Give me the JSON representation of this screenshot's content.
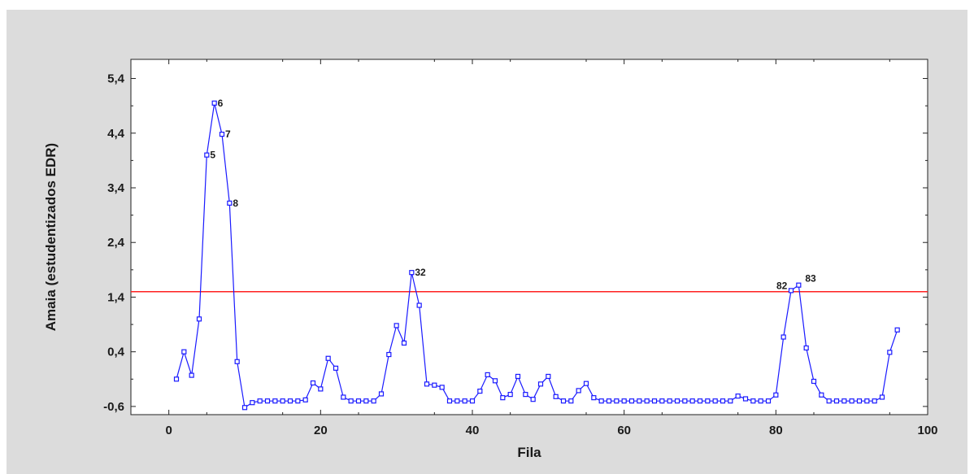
{
  "chart_data": {
    "type": "line",
    "xlabel": "Fila",
    "ylabel": "Amaia (estudentizados EDR)",
    "xlim": [
      -5,
      100
    ],
    "ylim": [
      -0.75,
      5.75
    ],
    "x_ticks": [
      0,
      20,
      40,
      60,
      80,
      100
    ],
    "x_tick_labels": [
      "0",
      "20",
      "40",
      "60",
      "80",
      "100"
    ],
    "y_ticks": [
      -0.6,
      0.4,
      1.4,
      2.4,
      3.4,
      4.4,
      5.4
    ],
    "y_tick_labels": [
      "-0,6",
      "0,4",
      "1,4",
      "2,4",
      "3,4",
      "4,4",
      "5,4"
    ],
    "threshold": 1.5,
    "grid": false,
    "colors": {
      "series": "#1a1aff",
      "threshold": "#ff2020",
      "frame_bg": "#dcdcdc",
      "plot_bg": "#ffffff"
    },
    "series": [
      {
        "x": [
          1,
          2,
          3,
          4,
          5,
          6,
          7,
          8,
          9,
          10,
          11,
          12,
          13,
          14,
          15,
          16,
          17,
          18,
          19,
          20,
          21,
          22,
          23,
          24,
          25,
          26,
          27,
          28,
          29,
          30,
          31,
          32,
          33,
          34,
          35,
          36,
          37,
          38,
          39,
          40,
          41,
          42,
          43,
          44,
          45,
          46,
          47,
          48,
          49,
          50,
          51,
          52,
          53,
          54,
          55,
          56,
          57,
          58,
          59,
          60,
          61,
          62,
          63,
          64,
          65,
          66,
          67,
          68,
          69,
          70,
          71,
          72,
          73,
          74,
          75,
          76,
          77,
          78,
          79,
          80,
          81,
          82,
          83,
          84,
          85,
          86,
          87,
          88,
          89,
          90,
          91,
          92,
          93,
          94,
          95,
          96
        ],
        "y": [
          -0.1,
          0.4,
          -0.03,
          1.0,
          4.0,
          4.95,
          4.38,
          3.12,
          0.22,
          -0.62,
          -0.53,
          -0.5,
          -0.5,
          -0.5,
          -0.5,
          -0.5,
          -0.5,
          -0.48,
          -0.17,
          -0.28,
          0.28,
          0.1,
          -0.43,
          -0.5,
          -0.5,
          -0.5,
          -0.5,
          -0.37,
          0.35,
          0.88,
          0.56,
          1.85,
          1.25,
          -0.19,
          -0.21,
          -0.25,
          -0.5,
          -0.5,
          -0.5,
          -0.5,
          -0.32,
          -0.02,
          -0.13,
          -0.44,
          -0.38,
          -0.05,
          -0.38,
          -0.47,
          -0.19,
          -0.05,
          -0.42,
          -0.5,
          -0.5,
          -0.31,
          -0.18,
          -0.44,
          -0.5,
          -0.5,
          -0.5,
          -0.5,
          -0.5,
          -0.5,
          -0.5,
          -0.5,
          -0.5,
          -0.5,
          -0.5,
          -0.5,
          -0.5,
          -0.5,
          -0.5,
          -0.5,
          -0.5,
          -0.5,
          -0.41,
          -0.46,
          -0.5,
          -0.5,
          -0.5,
          -0.39,
          0.67,
          1.52,
          1.62,
          0.47,
          -0.14,
          -0.39,
          -0.5,
          -0.5,
          -0.5,
          -0.5,
          -0.5,
          -0.5,
          -0.5,
          -0.43,
          0.39,
          0.8
        ]
      }
    ],
    "annotations": [
      {
        "text": "5",
        "x": 5
      },
      {
        "text": "6",
        "x": 6
      },
      {
        "text": "7",
        "x": 7
      },
      {
        "text": "8",
        "x": 8
      },
      {
        "text": "32",
        "x": 32
      },
      {
        "text": "82",
        "x": 82
      },
      {
        "text": "83",
        "x": 83
      }
    ]
  }
}
